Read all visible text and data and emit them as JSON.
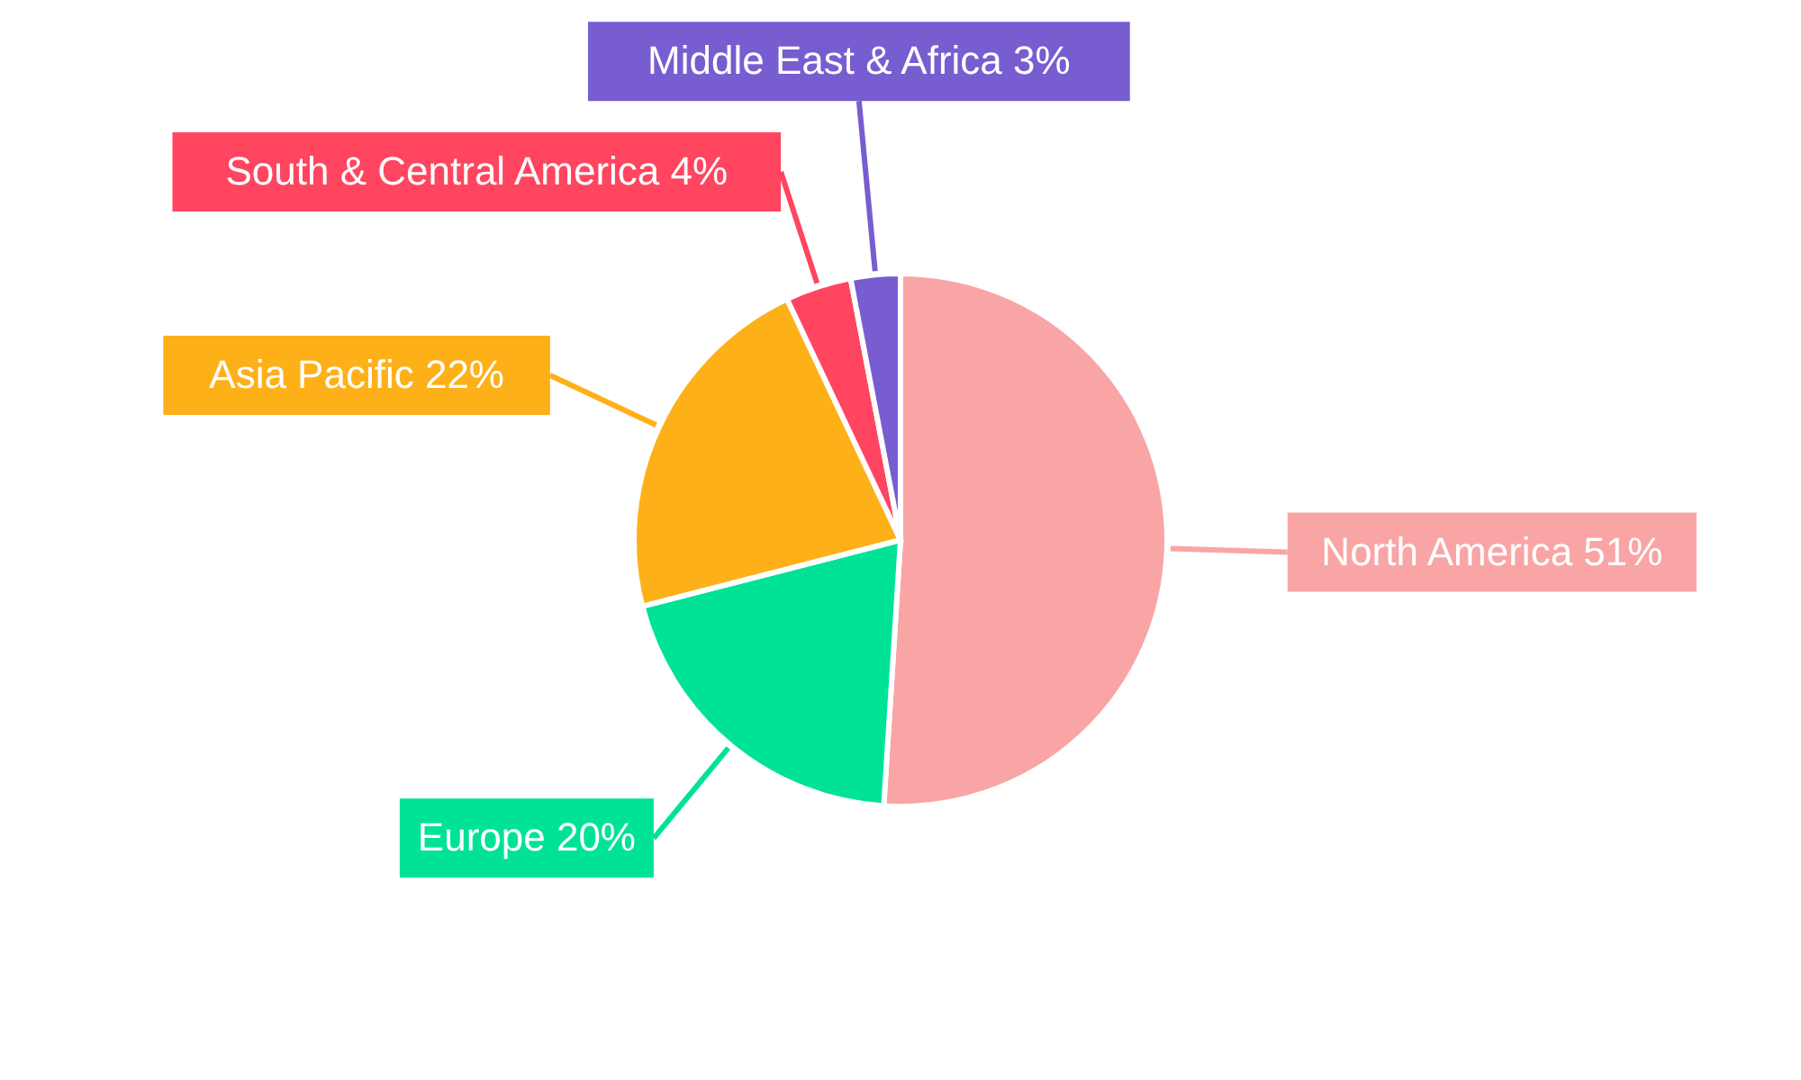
{
  "chart_data": {
    "type": "pie",
    "categories": [
      "North America",
      "Europe",
      "Asia Pacific",
      "South & Central America",
      "Middle East & Africa"
    ],
    "values": [
      51,
      20,
      22,
      4,
      3
    ],
    "value_labels": [
      "51%",
      "20%",
      "22%",
      "4%",
      "3%"
    ],
    "colors": [
      "#f9a5a5",
      "#00e396",
      "#feb019",
      "#ff4560",
      "#775dd0"
    ]
  }
}
